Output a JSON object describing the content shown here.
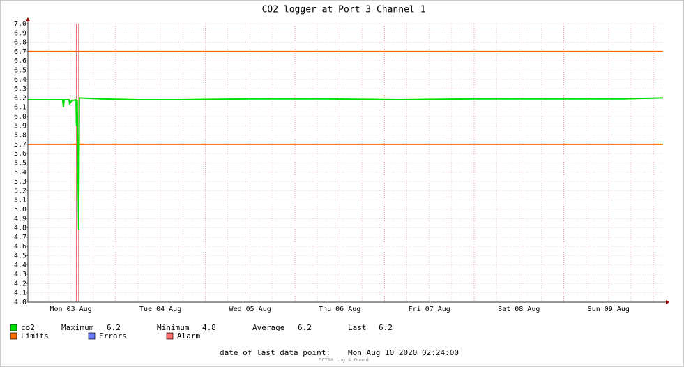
{
  "chart_data": {
    "type": "line",
    "title": "CO2 logger at Port 3 Channel 1",
    "xlim": [
      0.5,
      170.6
    ],
    "xticks": [
      {
        "value": 12,
        "label": "Mon 03 Aug"
      },
      {
        "value": 36,
        "label": "Tue 04 Aug"
      },
      {
        "value": 60,
        "label": "Wed 05 Aug"
      },
      {
        "value": 84,
        "label": "Thu 06 Aug"
      },
      {
        "value": 108,
        "label": "Fri 07 Aug"
      },
      {
        "value": 132,
        "label": "Sat 08 Aug"
      },
      {
        "value": 156,
        "label": "Sun 09 Aug"
      }
    ],
    "x_grid_major": [
      24,
      48,
      72,
      96,
      120,
      144,
      168
    ],
    "x_grid_minor": [
      6,
      12,
      18,
      30,
      36,
      42,
      54,
      60,
      66,
      78,
      84,
      90,
      102,
      108,
      114,
      126,
      132,
      138,
      150,
      156,
      162
    ],
    "ylim": [
      4.0,
      7.0
    ],
    "yticks": [
      {
        "value": 4,
        "label": "4.0"
      },
      4.1,
      4.2,
      4.3,
      4.4,
      4.5,
      4.6,
      4.7,
      4.8,
      4.9,
      {
        "value": 5,
        "label": "5.0"
      },
      5.1,
      5.2,
      5.3,
      5.4,
      5.5,
      5.6,
      5.7,
      5.8,
      5.9,
      {
        "value": 6,
        "label": "6.0"
      },
      6.1,
      6.2,
      6.3,
      6.4,
      6.5,
      6.6,
      6.7,
      6.8,
      6.9,
      {
        "value": 7,
        "label": "7.0"
      }
    ],
    "grid": true,
    "series": [
      {
        "name": "co2",
        "color": "#00e000",
        "x": [
          0.5,
          9.8,
          10.0,
          10.2,
          11.5,
          11.7,
          12.2,
          13.4,
          13.5,
          13.7,
          14.1,
          14.3,
          20,
          30,
          40,
          60,
          80,
          100,
          120,
          140,
          160,
          170.6
        ],
        "values": [
          6.18,
          6.18,
          6.1,
          6.18,
          6.18,
          6.14,
          6.17,
          6.18,
          5.9,
          6.18,
          4.78,
          6.2,
          6.19,
          6.18,
          6.18,
          6.19,
          6.19,
          6.18,
          6.19,
          6.19,
          6.19,
          6.2
        ]
      }
    ],
    "limits": {
      "values": [
        5.7,
        6.7
      ],
      "color": "#ff6600"
    },
    "alarms": {
      "x": [
        13.5,
        14.1
      ],
      "color": "#e06060"
    },
    "stats": [
      {
        "label": "Maximum",
        "value": 6.2
      },
      {
        "label": "Minimum",
        "value": 4.8
      },
      {
        "label": "Average",
        "value": 6.2
      },
      {
        "label": "Last",
        "value": 6.2
      }
    ],
    "legend": [
      {
        "label": "Limits",
        "color": "#ff7000"
      },
      {
        "label": "Errors",
        "color": "#7080ff"
      },
      {
        "label": "Alarm",
        "color": "#ff7070"
      }
    ],
    "footer_label": "date of last data point:",
    "footer_value": "Mon Aug 10 2020 02:24:00",
    "watermark": "OCTA® Log & Guard"
  }
}
